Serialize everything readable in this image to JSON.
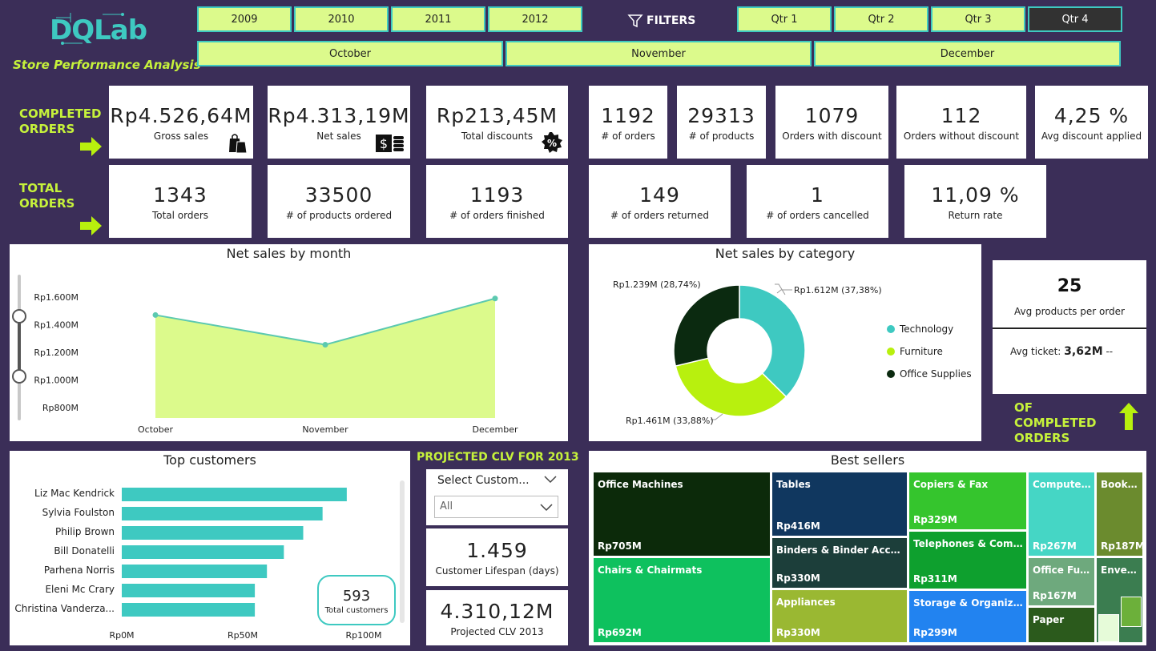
{
  "brand": {
    "logo": "DQLab",
    "subtitle": "Store Performance Analysis"
  },
  "years": [
    "2009",
    "2010",
    "2011",
    "2012"
  ],
  "filters_label": "FILTERS",
  "quarters": [
    "Qtr 1",
    "Qtr 2",
    "Qtr 3",
    "Qtr 4"
  ],
  "selected_quarter": "Qtr 4",
  "months": [
    "October",
    "November",
    "December"
  ],
  "completed_label": "COMPLETED ORDERS",
  "total_label": "TOTAL ORDERS",
  "completed": {
    "gross_sales": {
      "value": "Rp4.526,64M",
      "label": "Gross sales"
    },
    "net_sales": {
      "value": "Rp4.313,19M",
      "label": "Net sales"
    },
    "total_discounts": {
      "value": "Rp213,45M",
      "label": "Total discounts"
    },
    "orders": {
      "value": "1192",
      "label": "# of orders"
    },
    "products": {
      "value": "29313",
      "label": "# of products"
    },
    "with_discount": {
      "value": "1079",
      "label": "Orders with discount"
    },
    "without_discount": {
      "value": "112",
      "label": "Orders without discount"
    },
    "avg_discount": {
      "value": "4,25 %",
      "label": "Avg discount applied"
    }
  },
  "total": {
    "total_orders": {
      "value": "1343",
      "label": "Total orders"
    },
    "products_ordered": {
      "value": "33500",
      "label": "# of products ordered"
    },
    "orders_finished": {
      "value": "1193",
      "label": "# of orders finished"
    },
    "orders_returned": {
      "value": "149",
      "label": "# of orders returned"
    },
    "orders_cancelled": {
      "value": "1",
      "label": "# of orders cancelled"
    },
    "return_rate": {
      "value": "11,09 %",
      "label": "Return rate"
    }
  },
  "net_sales_month": {
    "title": "Net sales by month",
    "yticks": [
      "Rp1.600M",
      "Rp1.400M",
      "Rp1.200M",
      "Rp1.000M",
      "Rp800M"
    ]
  },
  "net_sales_category": {
    "title": "Net sales by category",
    "labels": [
      "Rp1.612M (37,38%)",
      "Rp1.461M (33,88%)",
      "Rp1.239M (28,74%)"
    ]
  },
  "side_card": {
    "value": "25",
    "label": "Avg products per order",
    "ticket_label": "Avg ticket:",
    "ticket_value": "3,62M",
    "ticket_suffix": "--",
    "footer": "OF COMPLETED ORDERS"
  },
  "top_customers": {
    "title": "Top customers",
    "xticks": [
      "Rp0M",
      "Rp50M",
      "Rp100M"
    ],
    "total_value": "593",
    "total_label": "Total customers"
  },
  "clv": {
    "title": "PROJECTED CLV FOR 2013",
    "select_label": "Select Custom...",
    "select_value": "All",
    "lifespan_value": "1.459",
    "lifespan_label": "Customer Lifespan (days)",
    "projected_value": "4.310,12M",
    "projected_label": "Projected CLV 2013"
  },
  "best_sellers": {
    "title": "Best sellers",
    "items": [
      {
        "name": "Office Machines",
        "value": "Rp705M",
        "color": "#0c2a0a"
      },
      {
        "name": "Chairs & Chairmats",
        "value": "Rp692M",
        "color": "#0ec15e"
      },
      {
        "name": "Tables",
        "value": "Rp416M",
        "color": "#10375f"
      },
      {
        "name": "Binders & Binder Access...",
        "value": "Rp330M",
        "color": "#1c3e3a"
      },
      {
        "name": "Appliances",
        "value": "Rp330M",
        "color": "#9ab832"
      },
      {
        "name": "Copiers & Fax",
        "value": "Rp329M",
        "color": "#35c52d"
      },
      {
        "name": "Telephones & Comm...",
        "value": "Rp311M",
        "color": "#0ea02e"
      },
      {
        "name": "Storage & Organizati...",
        "value": "Rp299M",
        "color": "#2283f0"
      },
      {
        "name": "Computer ...",
        "value": "Rp267M",
        "color": "#45d6c5"
      },
      {
        "name": "Office Furni...",
        "value": "Rp167M",
        "color": "#6ea97d"
      },
      {
        "name": "Paper",
        "value": "",
        "color": "#2b5a1c"
      },
      {
        "name": "Bookc...",
        "value": "Rp187M",
        "color": "#6b8b2e"
      },
      {
        "name": "Envel...",
        "value": "",
        "color": "#3b7d50"
      }
    ]
  },
  "chart_data": [
    {
      "type": "area",
      "title": "Net sales by month",
      "categories": [
        "October",
        "November",
        "December"
      ],
      "values": [
        1470,
        1255,
        1590
      ],
      "unit": "Rp M",
      "ylim": [
        700,
        1700
      ]
    },
    {
      "type": "pie",
      "title": "Net sales by category",
      "categories": [
        "Technology",
        "Furniture",
        "Office Supplies"
      ],
      "values": [
        1612,
        1461,
        1239
      ],
      "percentages": [
        37.38,
        33.88,
        28.74
      ],
      "colors": [
        "#3ec9c1",
        "#b8f00e",
        "#0b2a10"
      ],
      "legend_position": "right"
    },
    {
      "type": "bar",
      "title": "Top customers",
      "orientation": "horizontal",
      "categories": [
        "Liz Mac Kendrick",
        "Sylvia Foulston",
        "Philip Brown",
        "Bill Donatelli",
        "Parhena Norris",
        "Eleni Mc Crary",
        "Christina Vanderza..."
      ],
      "values": [
        93,
        83,
        75,
        67,
        60,
        55,
        55
      ],
      "xlim": [
        0,
        110
      ],
      "color": "#3ec9c1"
    }
  ]
}
